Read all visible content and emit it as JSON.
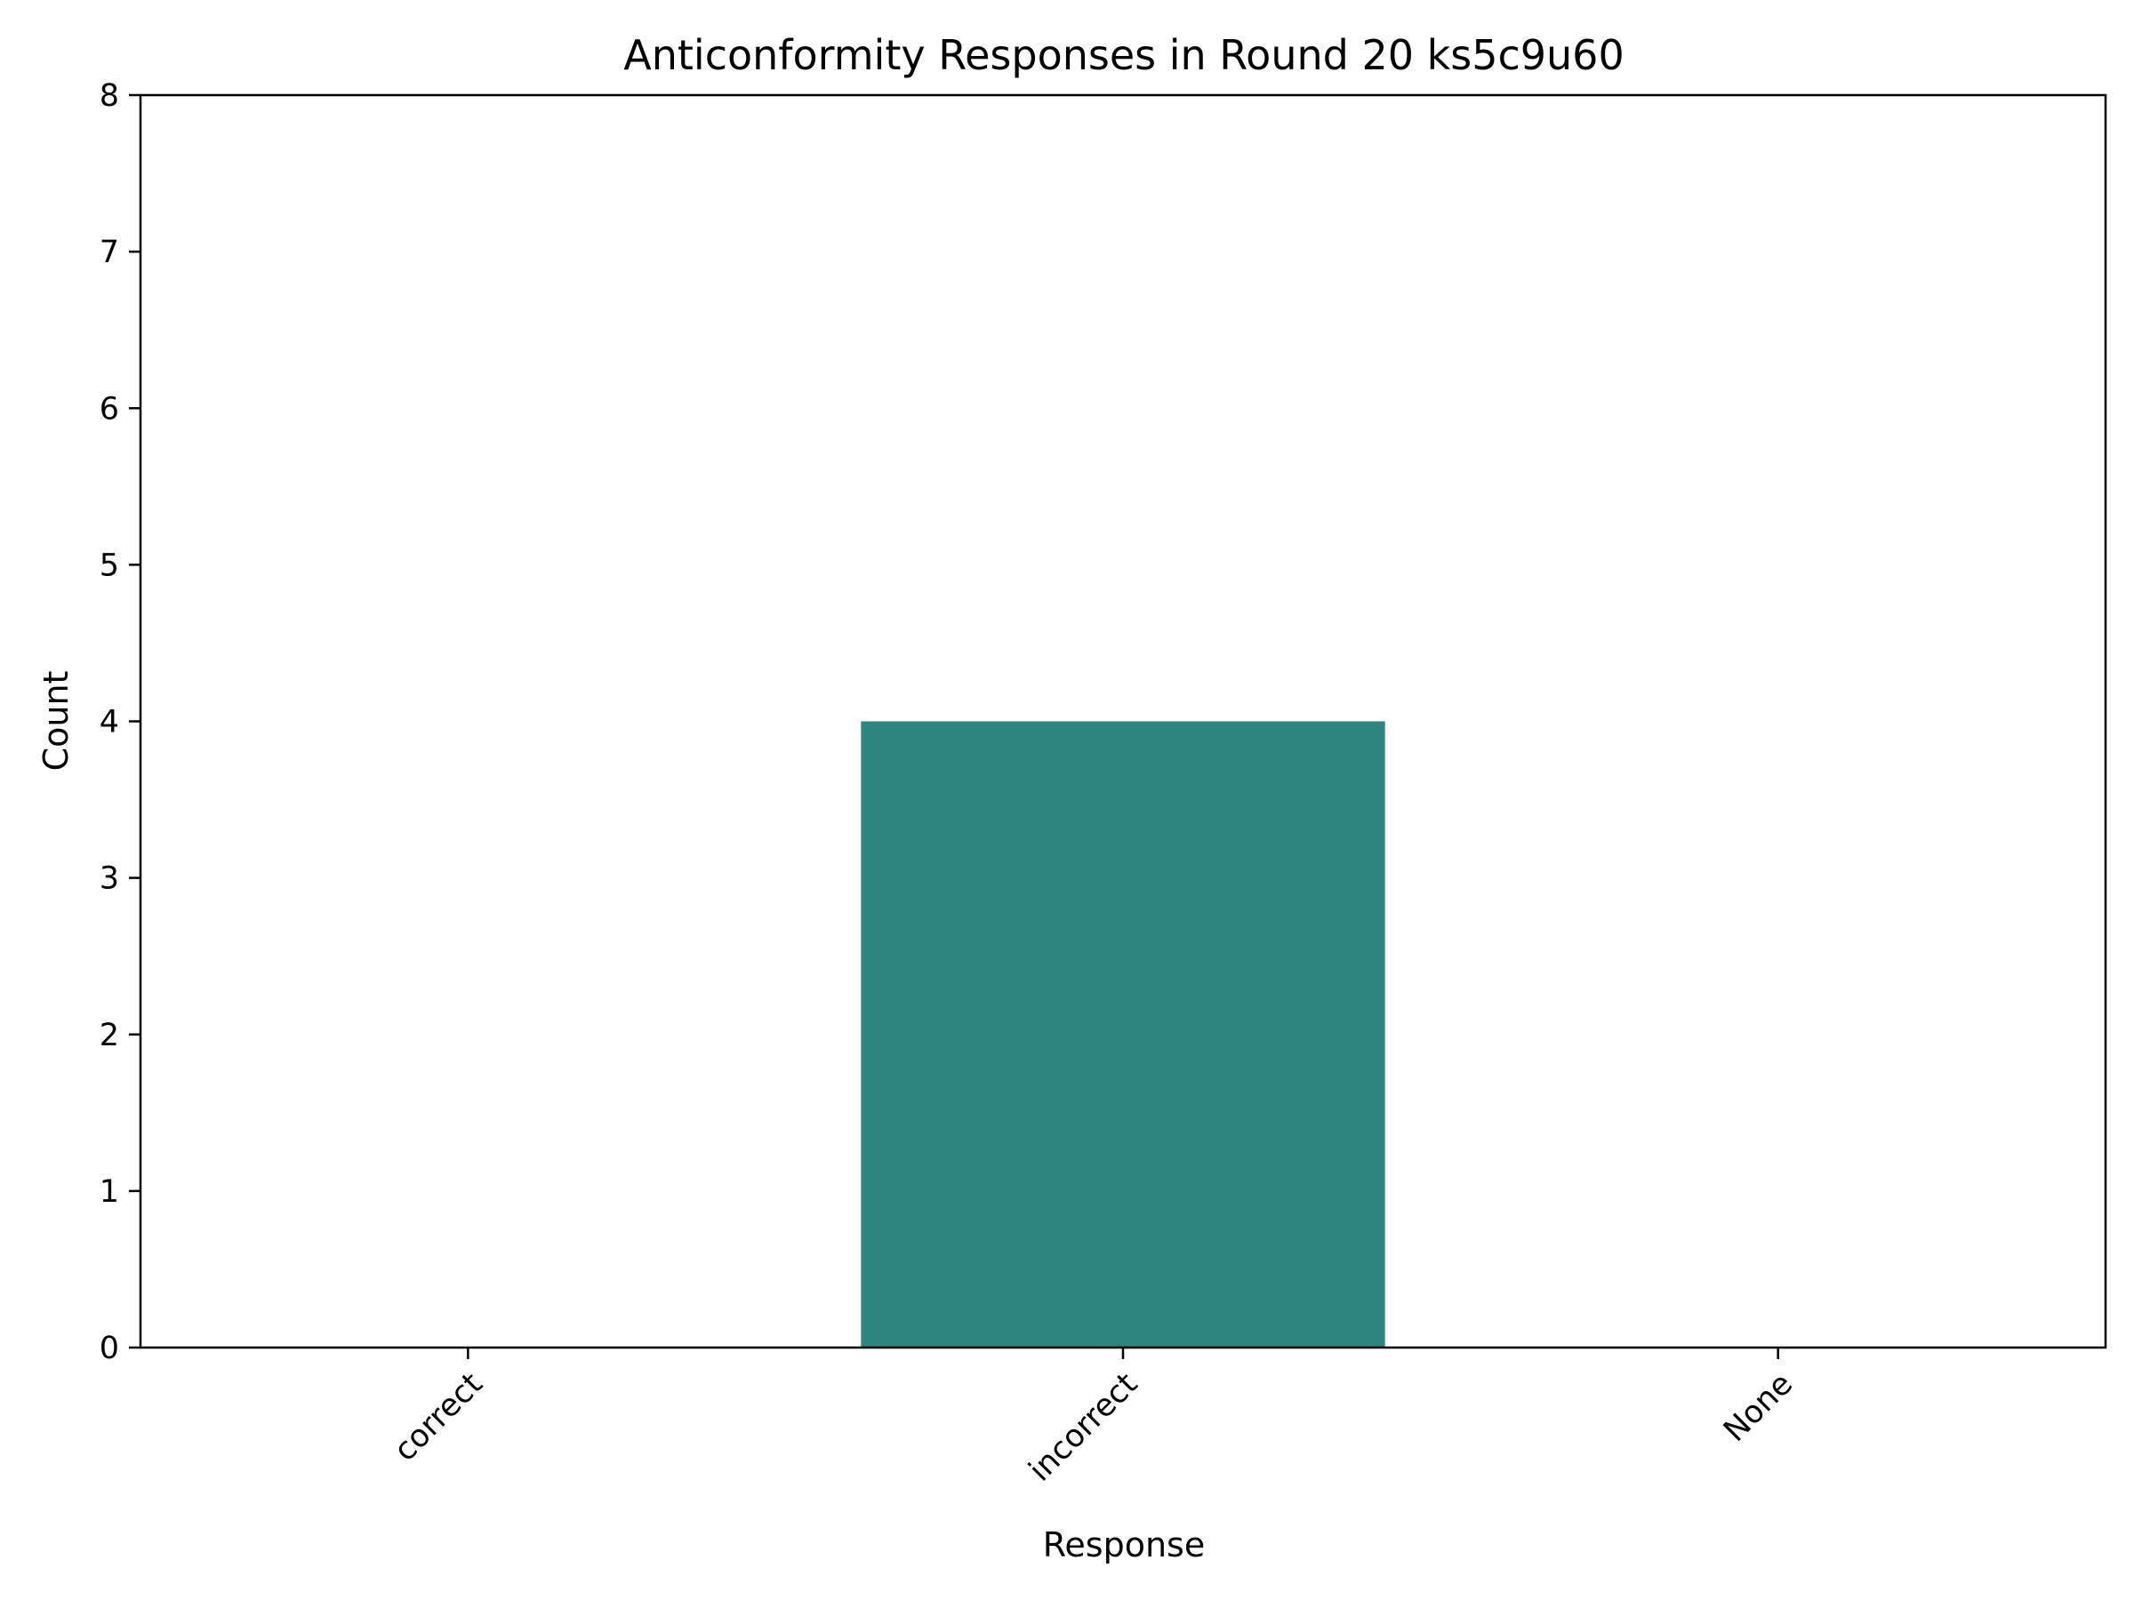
{
  "chart_data": {
    "type": "bar",
    "title": "Anticonformity Responses in Round 20 ks5c9u60",
    "xlabel": "Response",
    "ylabel": "Count",
    "categories": [
      "correct",
      "incorrect",
      "None"
    ],
    "values": [
      0,
      4,
      0
    ],
    "ylim": [
      0,
      8
    ],
    "yticks": [
      0,
      1,
      2,
      3,
      4,
      5,
      6,
      7,
      8
    ],
    "bar_color": "#2e847e",
    "grid": false,
    "legend": "none",
    "xtick_rotation_deg": 45
  }
}
